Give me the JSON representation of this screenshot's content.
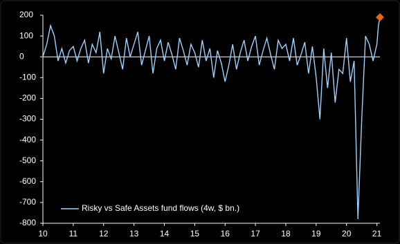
{
  "chart_data": {
    "type": "line",
    "legend": "Risky vs Safe Assets fund flows (4w, $ bn.)",
    "x": [
      10,
      10.125,
      10.25,
      10.375,
      10.5,
      10.625,
      10.75,
      10.875,
      11,
      11.125,
      11.25,
      11.375,
      11.5,
      11.625,
      11.75,
      11.875,
      12,
      12.125,
      12.25,
      12.375,
      12.5,
      12.625,
      12.75,
      12.875,
      13,
      13.125,
      13.25,
      13.375,
      13.5,
      13.625,
      13.75,
      13.875,
      14,
      14.125,
      14.25,
      14.375,
      14.5,
      14.625,
      14.75,
      14.875,
      15,
      15.125,
      15.25,
      15.375,
      15.5,
      15.625,
      15.75,
      15.875,
      16,
      16.125,
      16.25,
      16.375,
      16.5,
      16.625,
      16.75,
      16.875,
      17,
      17.125,
      17.25,
      17.375,
      17.5,
      17.625,
      17.75,
      17.875,
      18,
      18.125,
      18.25,
      18.375,
      18.5,
      18.625,
      18.75,
      18.875,
      19,
      19.125,
      19.25,
      19.375,
      19.5,
      19.625,
      19.75,
      19.875,
      20,
      20.125,
      20.25,
      20.375,
      20.5,
      20.625,
      20.75,
      20.875,
      21,
      21.05,
      21.1
    ],
    "series": [
      {
        "name": "Risky vs Safe Assets fund flows (4w, $ bn.)",
        "color": "#9fd3ff",
        "values": [
          0,
          60,
          150,
          100,
          -20,
          40,
          -30,
          30,
          50,
          -20,
          40,
          80,
          -30,
          60,
          20,
          120,
          -80,
          40,
          -10,
          100,
          20,
          -60,
          90,
          0,
          60,
          120,
          -40,
          30,
          100,
          -80,
          40,
          80,
          -20,
          70,
          10,
          -60,
          90,
          30,
          -40,
          60,
          20,
          -50,
          80,
          -20,
          40,
          -100,
          30,
          -30,
          -120,
          -40,
          60,
          -60,
          20,
          80,
          -20,
          50,
          100,
          -40,
          30,
          90,
          10,
          -60,
          80,
          40,
          60,
          -20,
          90,
          -40,
          10,
          70,
          -80,
          50,
          -100,
          -300,
          40,
          -150,
          20,
          -220,
          -60,
          -80,
          90,
          -120,
          -20,
          -780,
          -300,
          100,
          60,
          -20,
          60,
          150,
          190
        ]
      }
    ],
    "marker_color": "#e0661b",
    "xlim": [
      10,
      21.1
    ],
    "xticks": [
      10,
      11,
      12,
      13,
      14,
      15,
      16,
      17,
      18,
      19,
      20,
      21
    ],
    "ylim": [
      -800,
      200
    ],
    "yticks": [
      -800,
      -700,
      -600,
      -500,
      -400,
      -300,
      -200,
      -100,
      0,
      100,
      200
    ]
  }
}
